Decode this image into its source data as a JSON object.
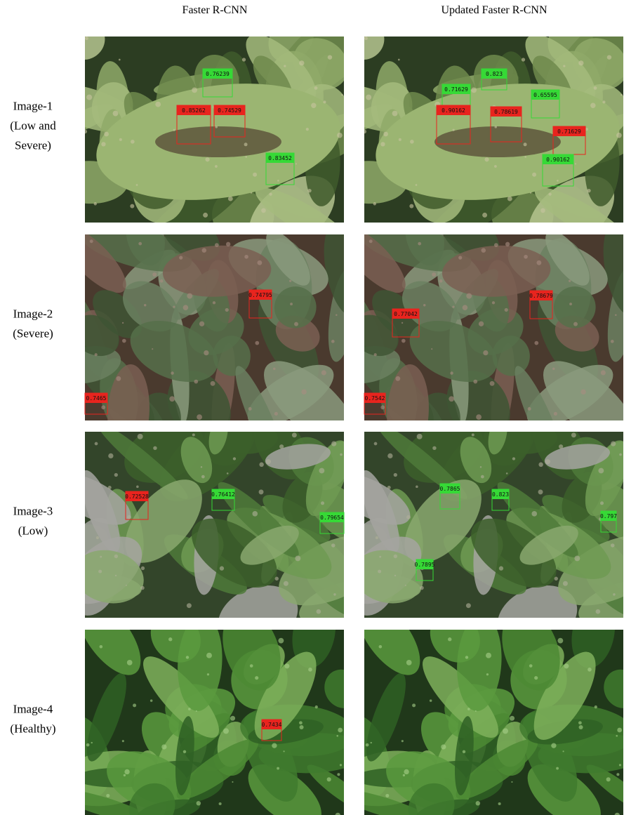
{
  "header": {
    "columns": [
      "Faster R-CNN",
      "Updated Faster R-CNN"
    ]
  },
  "rows": [
    {
      "label": [
        "Image-1",
        "(Low and",
        "Severe)"
      ],
      "left": [
        {
          "label": "0.76239",
          "color": "#36d936"
        },
        {
          "label": "0.85262",
          "color": "#e8241e"
        },
        {
          "label": "0.74529",
          "color": "#e8241e"
        },
        {
          "label": "0.83452",
          "color": "#36d936"
        }
      ],
      "right": [
        {
          "label": "0.823",
          "color": "#36d936"
        },
        {
          "label": "0.71629",
          "color": "#36d936"
        },
        {
          "label": "0.65595",
          "color": "#36d936"
        },
        {
          "label": "0.90162",
          "color": "#e8241e"
        },
        {
          "label": "0.78619",
          "color": "#e8241e"
        },
        {
          "label": "0.71629",
          "color": "#e8241e"
        },
        {
          "label": "0.90162",
          "color": "#36d936"
        }
      ]
    },
    {
      "label": [
        "Image-2",
        "(Severe)"
      ],
      "left": [
        {
          "label": "0.74795",
          "color": "#e8241e"
        },
        {
          "label": "0.7465",
          "color": "#e8241e"
        }
      ],
      "right": [
        {
          "label": "0.77042",
          "color": "#e8241e"
        },
        {
          "label": "0.78679",
          "color": "#e8241e"
        },
        {
          "label": "0.7542",
          "color": "#e8241e"
        }
      ]
    },
    {
      "label": [
        "Image-3",
        "(Low)"
      ],
      "left": [
        {
          "label": "0.72528",
          "color": "#e8241e"
        },
        {
          "label": "0.76412",
          "color": "#36d936"
        },
        {
          "label": "0.79654",
          "color": "#36d936"
        }
      ],
      "right": [
        {
          "label": "0.7865",
          "color": "#36d936"
        },
        {
          "label": "0.823",
          "color": "#36d936"
        },
        {
          "label": "0.797",
          "color": "#36d936"
        },
        {
          "label": "0.7895",
          "color": "#36d936"
        }
      ]
    },
    {
      "label": [
        "Image-4",
        "(Healthy)"
      ],
      "left": [
        {
          "label": "0.7434",
          "color": "#e8241e"
        }
      ],
      "right": []
    }
  ]
}
